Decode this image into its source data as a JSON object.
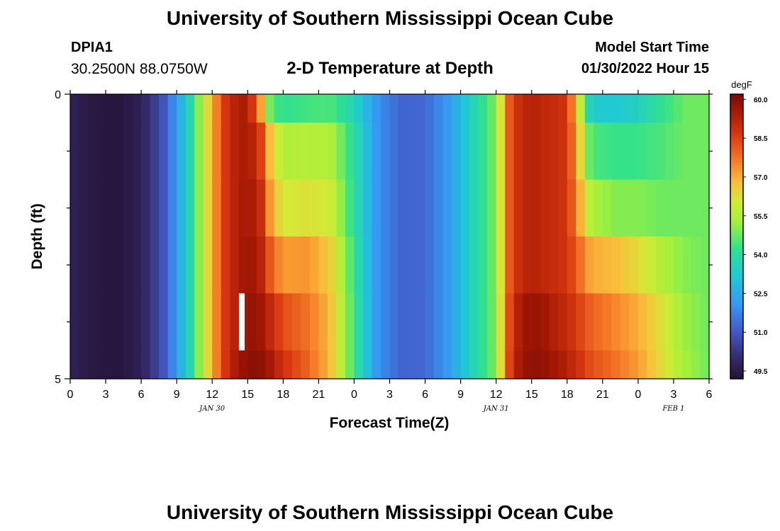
{
  "header": {
    "title": "University of Southern Mississippi Ocean Cube",
    "station_id": "DPIA1",
    "coordinates": "30.2500N  88.0750W",
    "plot_title": "2-D Temperature at Depth",
    "model_start_label": "Model Start Time",
    "model_start_value": "01/30/2022 Hour 15"
  },
  "footer": {
    "title": "University of Southern Mississippi Ocean Cube"
  },
  "chart_data": {
    "type": "heatmap",
    "title": "2-D Temperature at Depth",
    "xlabel": "Forecast Time(Z)",
    "ylabel": "Depth (ft)",
    "x_tick_labels": [
      "0",
      "3",
      "6",
      "9",
      "12",
      "15",
      "18",
      "21",
      "0",
      "3",
      "6",
      "9",
      "12",
      "15",
      "18",
      "21",
      "0",
      "3",
      "6"
    ],
    "date_labels": [
      {
        "label": "JAN 30",
        "hour": 12
      },
      {
        "label": "JAN 31",
        "hour": 36
      },
      {
        "label": "FEB 1",
        "hour": 51
      }
    ],
    "x_range_hours": [
      0,
      54
    ],
    "y_tick_labels": [
      "0",
      "5"
    ],
    "ylim": [
      0,
      5
    ],
    "depth_layers": 5,
    "colorbar": {
      "unit": "degF",
      "min": 49.2,
      "max": 60.2,
      "tick_values": [
        49.5,
        51.0,
        52.5,
        54.0,
        55.5,
        57.0,
        58.5,
        60.0
      ],
      "tick_labels": [
        "49.5",
        "51.0",
        "52.5",
        "54.0",
        "55.5",
        "57.0",
        "58.5",
        "60.0"
      ]
    },
    "model_start_marker": {
      "hour": 14.5,
      "depth_top": 3.5,
      "depth_bottom": 4.5
    },
    "hours": [
      0,
      2,
      4,
      6,
      8,
      10,
      12,
      13,
      14,
      15,
      16,
      17,
      18,
      20,
      22,
      24,
      26,
      28,
      30,
      32,
      34,
      36,
      37,
      38,
      39,
      40,
      42,
      44,
      46,
      48,
      50,
      52,
      54
    ],
    "temperature_by_layer": [
      {
        "layer": "0-0.5 ft",
        "values": [
          49.7,
          49.4,
          49.3,
          49.7,
          51.0,
          53.5,
          57.0,
          58.6,
          59.3,
          59.5,
          57.5,
          54.5,
          54.2,
          54.4,
          54.5,
          53.6,
          52.0,
          51.2,
          51.3,
          52.2,
          53.6,
          55.0,
          58.0,
          59.0,
          59.3,
          59.1,
          58.8,
          53.3,
          53.2,
          53.5,
          54.2,
          54.8,
          54.8
        ]
      },
      {
        "layer": "0.5-1.5 ft",
        "values": [
          49.7,
          49.4,
          49.3,
          49.7,
          51.0,
          53.5,
          57.0,
          58.6,
          59.3,
          59.5,
          58.8,
          56.5,
          55.5,
          55.6,
          55.5,
          54.0,
          52.0,
          51.2,
          51.3,
          52.2,
          53.6,
          55.0,
          58.0,
          59.0,
          59.3,
          59.1,
          58.8,
          54.5,
          54.3,
          54.3,
          54.5,
          54.8,
          54.8
        ]
      },
      {
        "layer": "1.5-2.5 ft",
        "values": [
          49.7,
          49.4,
          49.3,
          49.7,
          51.0,
          53.5,
          57.0,
          58.6,
          59.3,
          59.6,
          59.2,
          57.0,
          56.0,
          56.2,
          56.0,
          54.0,
          52.0,
          51.2,
          51.3,
          52.2,
          53.6,
          55.0,
          58.0,
          59.0,
          59.3,
          59.1,
          58.8,
          55.5,
          55.0,
          55.0,
          54.8,
          54.8,
          54.8
        ]
      },
      {
        "layer": "2.5-3.5 ft",
        "values": [
          49.7,
          49.4,
          49.3,
          49.7,
          51.0,
          53.5,
          57.0,
          58.6,
          59.3,
          59.7,
          59.4,
          58.0,
          57.2,
          57.3,
          56.6,
          54.2,
          52.0,
          51.2,
          51.3,
          52.2,
          53.6,
          55.0,
          58.0,
          59.0,
          59.3,
          59.1,
          58.8,
          57.0,
          56.8,
          56.3,
          55.5,
          55.0,
          54.8
        ]
      },
      {
        "layer": "3.5-4.5 ft",
        "values": [
          49.7,
          49.4,
          49.3,
          49.7,
          51.0,
          53.5,
          57.0,
          58.6,
          59.3,
          59.8,
          59.7,
          59.0,
          58.3,
          57.8,
          56.8,
          54.3,
          52.0,
          51.2,
          51.3,
          52.2,
          53.6,
          55.0,
          58.2,
          59.5,
          59.8,
          59.6,
          59.0,
          58.0,
          57.5,
          57.0,
          56.2,
          55.2,
          54.8
        ]
      },
      {
        "layer": "4.5-5 ft",
        "values": [
          49.7,
          49.4,
          49.3,
          49.7,
          51.0,
          53.5,
          57.0,
          58.6,
          59.5,
          59.9,
          59.9,
          59.5,
          58.8,
          58.0,
          56.8,
          54.3,
          52.0,
          51.2,
          51.3,
          52.2,
          53.6,
          55.0,
          58.3,
          59.6,
          59.9,
          59.8,
          59.3,
          58.3,
          57.8,
          57.2,
          56.3,
          55.3,
          54.8
        ]
      }
    ]
  }
}
